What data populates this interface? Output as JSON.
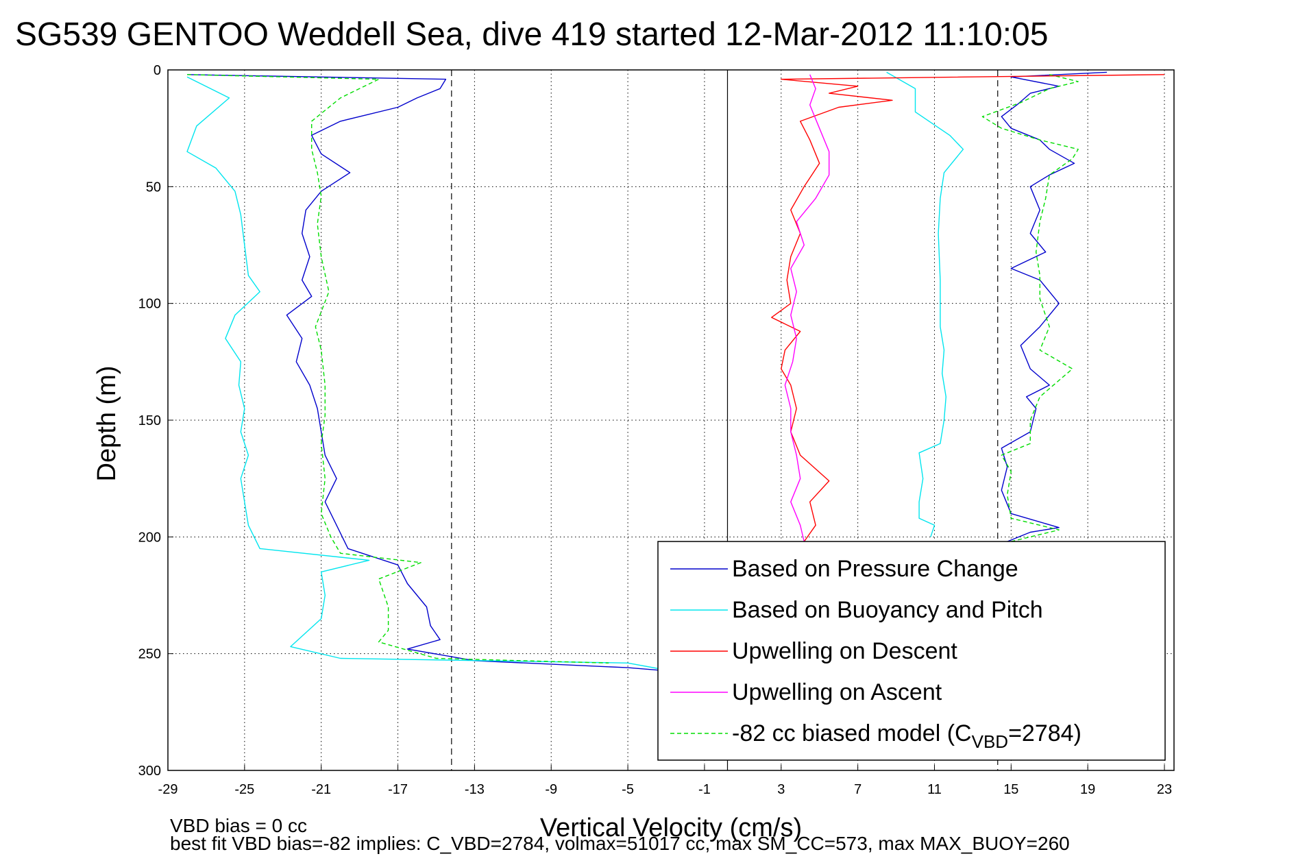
{
  "chart_data": {
    "type": "line",
    "title": "SG539 GENTOO Weddell Sea, dive 419 started 12-Mar-2012 11:10:05",
    "xlabel": "Vertical Velocity (cm/s)",
    "ylabel": "Depth (m)",
    "xlim": [
      -29,
      23.5
    ],
    "ylim": [
      0,
      300
    ],
    "y_reversed": true,
    "grid": true,
    "x_ticks": [
      "-29",
      "-25",
      "-21",
      "-17",
      "-13",
      "-9",
      "-5",
      "-1",
      "3",
      "7",
      "11",
      "15",
      "19",
      "23"
    ],
    "y_ticks": [
      "0",
      "50",
      "100",
      "150",
      "200",
      "250",
      "300"
    ],
    "reference_lines": [
      {
        "x": -14.2,
        "style": "dashed"
      },
      {
        "x": 0.2,
        "style": "solid"
      },
      {
        "x": 14.3,
        "style": "dashed"
      }
    ],
    "legend_position": "bottom-right",
    "legend": [
      {
        "label": "Based on Pressure Change",
        "color": "#0000cc",
        "dash": false
      },
      {
        "label": "Based on Buoyancy and Pitch",
        "color": "#00e5ee",
        "dash": false
      },
      {
        "label": "Upwelling on Descent",
        "color": "#ff0000",
        "dash": false
      },
      {
        "label": "Upwelling on Ascent",
        "color": "#ff00ff",
        "dash": false
      },
      {
        "label_main": "-82 cc biased model (C",
        "label_sub": "VBD",
        "label_tail": "=2784)",
        "color": "#00dd00",
        "dash": true
      }
    ],
    "series": [
      {
        "id": "pressure_descent",
        "color": "#0000cc",
        "dash": false,
        "points": [
          [
            -28,
            2
          ],
          [
            -14.5,
            4
          ],
          [
            -14.8,
            8
          ],
          [
            -16,
            12
          ],
          [
            -17,
            16
          ],
          [
            -20,
            22
          ],
          [
            -21.5,
            28
          ],
          [
            -21,
            36
          ],
          [
            -19.5,
            44
          ],
          [
            -21,
            52
          ],
          [
            -21.8,
            60
          ],
          [
            -22,
            70
          ],
          [
            -21.6,
            80
          ],
          [
            -22,
            90
          ],
          [
            -21.5,
            97
          ],
          [
            -22.8,
            105
          ],
          [
            -22,
            115
          ],
          [
            -22.3,
            125
          ],
          [
            -21.6,
            135
          ],
          [
            -21.2,
            145
          ],
          [
            -21,
            155
          ],
          [
            -20.8,
            165
          ],
          [
            -20.2,
            175
          ],
          [
            -20.8,
            185
          ],
          [
            -20.2,
            195
          ],
          [
            -19.6,
            205
          ],
          [
            -17,
            212
          ],
          [
            -16.5,
            220
          ],
          [
            -15.5,
            230
          ],
          [
            -15.3,
            238
          ],
          [
            -14.8,
            244
          ],
          [
            -16.5,
            248
          ],
          [
            -13,
            253
          ],
          [
            -5,
            256
          ],
          [
            -2,
            258
          ]
        ]
      },
      {
        "id": "buoyancy_descent",
        "color": "#00e5ee",
        "dash": false,
        "points": [
          [
            -28,
            3
          ],
          [
            -25.8,
            12
          ],
          [
            -27.5,
            24
          ],
          [
            -28,
            35
          ],
          [
            -26.5,
            42
          ],
          [
            -25.5,
            52
          ],
          [
            -25.2,
            62
          ],
          [
            -25,
            75
          ],
          [
            -24.8,
            88
          ],
          [
            -24.2,
            95
          ],
          [
            -25.5,
            105
          ],
          [
            -26,
            115
          ],
          [
            -25.2,
            125
          ],
          [
            -25.3,
            135
          ],
          [
            -25,
            145
          ],
          [
            -25.2,
            155
          ],
          [
            -24.8,
            165
          ],
          [
            -25.2,
            175
          ],
          [
            -25,
            185
          ],
          [
            -24.8,
            195
          ],
          [
            -24.2,
            205
          ],
          [
            -18.5,
            210
          ],
          [
            -21,
            215
          ],
          [
            -20.8,
            225
          ],
          [
            -21,
            235
          ],
          [
            -22.6,
            247
          ],
          [
            -20,
            252
          ],
          [
            -5,
            254
          ],
          [
            -3,
            257
          ],
          [
            -1,
            260
          ]
        ]
      },
      {
        "id": "model_descent",
        "color": "#00dd00",
        "dash": true,
        "points": [
          [
            -28,
            2
          ],
          [
            -18,
            4
          ],
          [
            -20,
            12
          ],
          [
            -21.5,
            22
          ],
          [
            -21.5,
            34
          ],
          [
            -21.2,
            44
          ],
          [
            -21,
            54
          ],
          [
            -21.2,
            66
          ],
          [
            -21,
            80
          ],
          [
            -20.6,
            95
          ],
          [
            -21.3,
            110
          ],
          [
            -21,
            120
          ],
          [
            -20.8,
            135
          ],
          [
            -20.8,
            148
          ],
          [
            -21,
            160
          ],
          [
            -20.8,
            175
          ],
          [
            -21,
            190
          ],
          [
            -20.5,
            200
          ],
          [
            -20,
            207
          ],
          [
            -15.8,
            211
          ],
          [
            -18,
            218
          ],
          [
            -17.5,
            230
          ],
          [
            -17.5,
            240
          ],
          [
            -18,
            245
          ],
          [
            -15,
            252
          ],
          [
            -6,
            254
          ]
        ]
      },
      {
        "id": "pressure_ascent",
        "color": "#0000cc",
        "dash": false,
        "points": [
          [
            14.8,
            202
          ],
          [
            16,
            198
          ],
          [
            17.5,
            196
          ],
          [
            15,
            190
          ],
          [
            14.5,
            180
          ],
          [
            14.8,
            170
          ],
          [
            14.5,
            162
          ],
          [
            16,
            155
          ],
          [
            16.3,
            145
          ],
          [
            15.8,
            140
          ],
          [
            17,
            135
          ],
          [
            16,
            128
          ],
          [
            15.5,
            118
          ],
          [
            16.5,
            110
          ],
          [
            17.5,
            100
          ],
          [
            16.5,
            90
          ],
          [
            15,
            85
          ],
          [
            16.8,
            78
          ],
          [
            16,
            70
          ],
          [
            16.5,
            60
          ],
          [
            16,
            50
          ],
          [
            17,
            45
          ],
          [
            18.3,
            40
          ],
          [
            17,
            34
          ],
          [
            16.5,
            30
          ],
          [
            15,
            25
          ],
          [
            14.5,
            20
          ],
          [
            15.3,
            15
          ],
          [
            16,
            10
          ],
          [
            17.5,
            7
          ],
          [
            15,
            3
          ],
          [
            20,
            1
          ]
        ]
      },
      {
        "id": "buoyancy_ascent",
        "color": "#00e5ee",
        "dash": false,
        "points": [
          [
            8.5,
            1
          ],
          [
            10,
            8
          ],
          [
            10,
            18
          ],
          [
            11.8,
            28
          ],
          [
            12.5,
            34
          ],
          [
            11.5,
            44
          ],
          [
            11.3,
            55
          ],
          [
            11.2,
            70
          ],
          [
            11.3,
            90
          ],
          [
            11.3,
            110
          ],
          [
            11.5,
            120
          ],
          [
            11.4,
            130
          ],
          [
            11.6,
            140
          ],
          [
            11.5,
            150
          ],
          [
            11.3,
            160
          ],
          [
            10.2,
            164
          ],
          [
            10.4,
            175
          ],
          [
            10.2,
            185
          ],
          [
            10.2,
            192
          ],
          [
            11,
            195
          ],
          [
            10.8,
            200
          ]
        ]
      },
      {
        "id": "model_ascent",
        "color": "#00dd00",
        "dash": true,
        "points": [
          [
            15,
            202
          ],
          [
            17.5,
            197
          ],
          [
            15,
            192
          ],
          [
            14.8,
            182
          ],
          [
            15,
            172
          ],
          [
            14.5,
            165
          ],
          [
            16,
            160
          ],
          [
            16,
            150
          ],
          [
            16.5,
            140
          ],
          [
            18.2,
            128
          ],
          [
            16.5,
            120
          ],
          [
            17,
            110
          ],
          [
            16.5,
            98
          ],
          [
            16.5,
            88
          ],
          [
            16.3,
            78
          ],
          [
            16.5,
            65
          ],
          [
            16.8,
            55
          ],
          [
            17,
            45
          ],
          [
            18.2,
            38
          ],
          [
            18.5,
            34
          ],
          [
            16.5,
            30
          ],
          [
            14.5,
            25
          ],
          [
            13.5,
            20
          ],
          [
            15.5,
            14
          ],
          [
            17,
            8
          ],
          [
            18.5,
            5
          ],
          [
            17,
            2
          ]
        ]
      },
      {
        "id": "upwelling_descent",
        "color": "#ff0000",
        "dash": false,
        "points": [
          [
            23,
            2
          ],
          [
            3,
            4
          ],
          [
            7,
            7
          ],
          [
            5.5,
            10
          ],
          [
            8.8,
            13
          ],
          [
            6,
            16
          ],
          [
            4,
            22
          ],
          [
            4.5,
            30
          ],
          [
            5,
            40
          ],
          [
            4.2,
            50
          ],
          [
            3.5,
            60
          ],
          [
            4,
            70
          ],
          [
            3.5,
            80
          ],
          [
            3.3,
            90
          ],
          [
            3.5,
            100
          ],
          [
            2.5,
            106
          ],
          [
            4,
            112
          ],
          [
            3.2,
            120
          ],
          [
            3,
            128
          ],
          [
            3.5,
            135
          ],
          [
            3.8,
            145
          ],
          [
            3.5,
            155
          ],
          [
            4,
            165
          ],
          [
            5.5,
            176
          ],
          [
            4.5,
            185
          ],
          [
            4.8,
            195
          ],
          [
            4.2,
            202
          ]
        ]
      },
      {
        "id": "upwelling_ascent",
        "color": "#ff00ff",
        "dash": false,
        "points": [
          [
            4.2,
            202
          ],
          [
            4,
            195
          ],
          [
            3.5,
            185
          ],
          [
            4,
            175
          ],
          [
            3.8,
            165
          ],
          [
            3.5,
            155
          ],
          [
            3.5,
            145
          ],
          [
            3.2,
            135
          ],
          [
            3.6,
            125
          ],
          [
            3.8,
            115
          ],
          [
            3.5,
            105
          ],
          [
            3.8,
            95
          ],
          [
            3.5,
            85
          ],
          [
            4.2,
            75
          ],
          [
            3.8,
            65
          ],
          [
            4.8,
            55
          ],
          [
            5.5,
            45
          ],
          [
            5.5,
            35
          ],
          [
            5,
            25
          ],
          [
            4.5,
            15
          ],
          [
            4.8,
            8
          ],
          [
            4.5,
            2
          ]
        ]
      }
    ]
  },
  "notes": {
    "line1": "VBD bias = 0 cc",
    "line2": "best fit VBD bias=-82 implies: C_VBD=2784, volmax=51017 cc, max SM_CC=573, max MAX_BUOY=260"
  }
}
